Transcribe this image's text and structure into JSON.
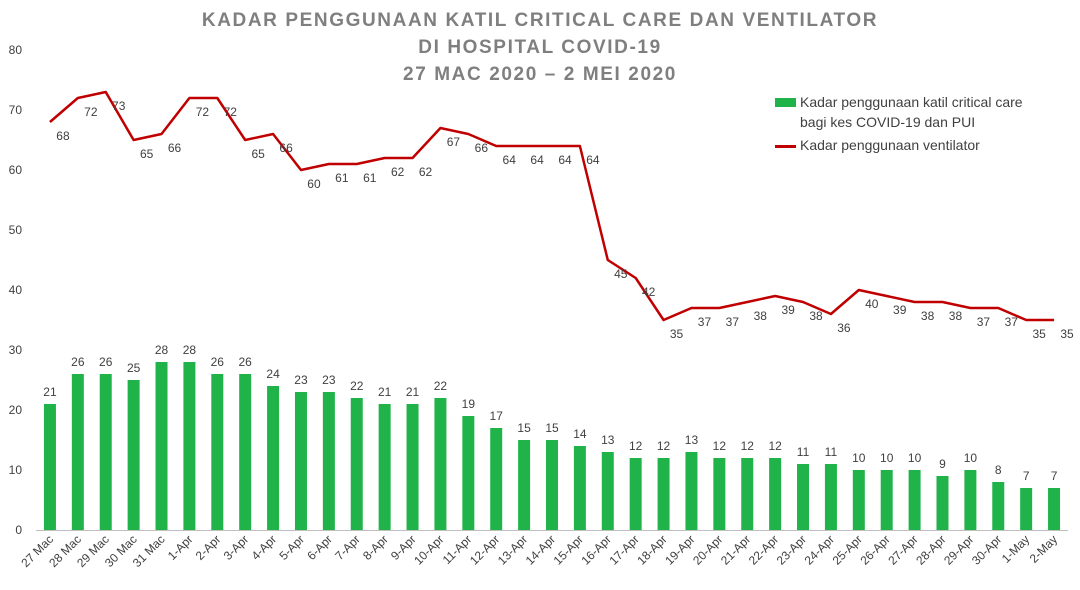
{
  "title": {
    "line1": "KADAR PENGGUNAAN KATIL CRITICAL CARE DAN VENTILATOR",
    "line2": "DI HOSPITAL COVID-19",
    "line3": "27 MAC 2020 – 2 MEI 2020"
  },
  "colors": {
    "bar": "#1fb34a",
    "line": "#c00000",
    "text": "#404040",
    "title": "#7f7f7f",
    "axis": "#bfbfbf"
  },
  "chart_data": {
    "type": "bar",
    "categories": [
      "27 Mac",
      "28 Mac",
      "29 Mac",
      "30 Mac",
      "31 Mac",
      "1-Apr",
      "2-Apr",
      "3-Apr",
      "4-Apr",
      "5-Apr",
      "6-Apr",
      "7-Apr",
      "8-Apr",
      "9-Apr",
      "10-Apr",
      "11-Apr",
      "12-Apr",
      "13-Apr",
      "14-Apr",
      "15-Apr",
      "16-Apr",
      "17-Apr",
      "18-Apr",
      "19-Apr",
      "20-Apr",
      "21-Apr",
      "22-Apr",
      "23-Apr",
      "24-Apr",
      "25-Apr",
      "26-Apr",
      "27-Apr",
      "28-Apr",
      "29-Apr",
      "30-Apr",
      "1-May",
      "2-May"
    ],
    "series": [
      {
        "name": "Kadar penggunaan katil critical care bagi kes COVID-19 dan PUI",
        "type": "bar",
        "values": [
          21,
          26,
          26,
          25,
          28,
          28,
          26,
          26,
          24,
          23,
          23,
          22,
          21,
          21,
          22,
          19,
          17,
          15,
          15,
          14,
          13,
          12,
          12,
          13,
          12,
          12,
          12,
          11,
          11,
          10,
          10,
          10,
          9,
          10,
          8,
          7,
          7
        ]
      },
      {
        "name": "Kadar penggunaan ventilator",
        "type": "line",
        "values": [
          68,
          72,
          73,
          65,
          66,
          72,
          72,
          65,
          66,
          60,
          61,
          61,
          62,
          62,
          67,
          66,
          64,
          64,
          64,
          64,
          45,
          42,
          35,
          37,
          37,
          38,
          39,
          38,
          36,
          40,
          39,
          38,
          38,
          37,
          37,
          35,
          35
        ]
      }
    ],
    "yticks": [
      0,
      10,
      20,
      30,
      40,
      50,
      60,
      70,
      80
    ],
    "ylim": [
      0,
      80
    ],
    "grid": false,
    "legend_position": "top-right"
  },
  "legend": {
    "bar_label_line1": "Kadar penggunaan katil critical care",
    "bar_label_line2": "bagi kes COVID-19 dan PUI",
    "line_label": "Kadar penggunaan ventilator"
  }
}
